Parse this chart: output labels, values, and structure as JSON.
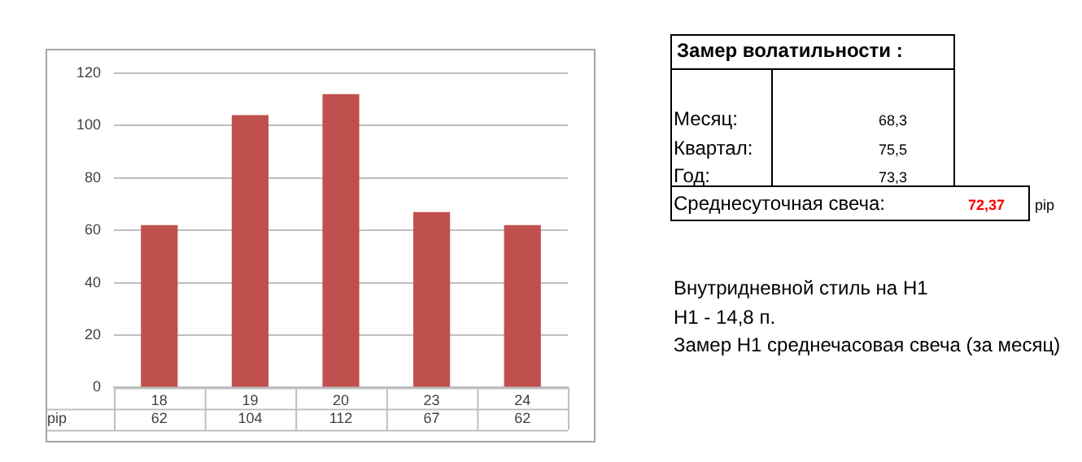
{
  "chart_data": {
    "type": "bar",
    "categories": [
      "18",
      "19",
      "20",
      "23",
      "24"
    ],
    "series": [
      {
        "name": "pip",
        "color": "#c0504d",
        "values": [
          62,
          104,
          112,
          67,
          62
        ]
      }
    ],
    "ylim": [
      0,
      120
    ],
    "yticks": [
      0,
      20,
      40,
      60,
      80,
      100,
      120
    ],
    "grid": "y",
    "data_labels": true,
    "annotations": [
      "Замер  волатильности  :",
      "Месяц:",
      "68,3",
      "Квартал:",
      "75,5",
      "Год:",
      "73,3",
      "Среднесуточная свеча:",
      "72,37",
      "pip",
      "Внутридневной стиль на H1",
      "H1 - 14,8 п.",
      "Замер H1 среднечасовая свеча (за месяц)"
    ]
  }
}
